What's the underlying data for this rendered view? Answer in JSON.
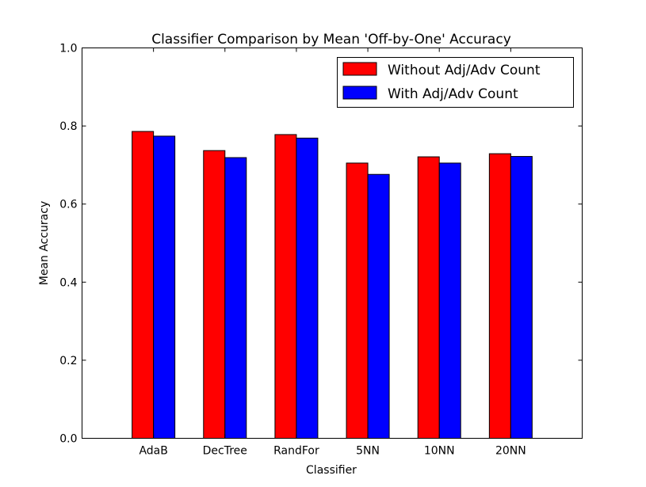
{
  "chart_data": {
    "type": "bar",
    "title": "Classifier Comparison by Mean 'Off-by-One' Accuracy",
    "xlabel": "Classifier",
    "ylabel": "Mean Accuracy",
    "categories": [
      "AdaB",
      "DecTree",
      "RandFor",
      "5NN",
      "10NN",
      "20NN"
    ],
    "series": [
      {
        "name": "Without Adj/Adv Count",
        "color": "#ff0000",
        "values": [
          0.786,
          0.737,
          0.778,
          0.705,
          0.721,
          0.729
        ]
      },
      {
        "name": "With Adj/Adv Count",
        "color": "#0000ff",
        "values": [
          0.774,
          0.719,
          0.769,
          0.676,
          0.705,
          0.722
        ]
      }
    ],
    "ylim": [
      0.0,
      1.0
    ],
    "yticks": [
      "0.0",
      "0.2",
      "0.4",
      "0.6",
      "0.8",
      "1.0"
    ],
    "grid": false,
    "legend_position": "top-right"
  }
}
